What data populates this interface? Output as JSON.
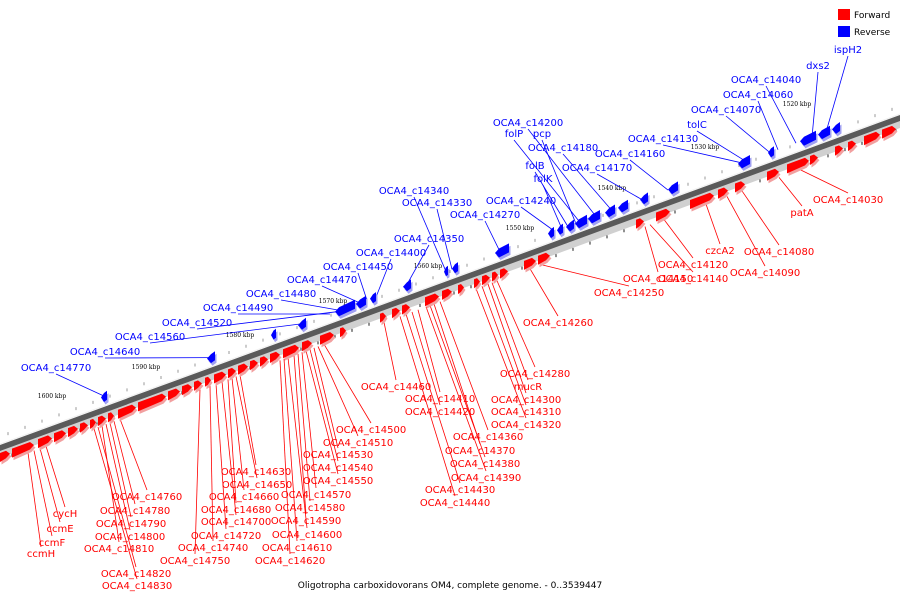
{
  "caption": "Oligotropha carboxidovorans OM4, complete genome. - 0..3539447",
  "legend": [
    {
      "label": "Forward",
      "color": "#ff0000"
    },
    {
      "label": "Reverse",
      "color": "#0000ff"
    }
  ],
  "ruler": [
    "1520 kbp",
    "1530 kbp",
    "1540 kbp",
    "1550 kbp",
    "1560 kbp",
    "1570 kbp",
    "1580 kbp",
    "1590 kbp",
    "1600 kbp"
  ],
  "reverse_labels": [
    "ispH2",
    "dxs2",
    "OCA4_c14040",
    "OCA4_c14060",
    "OCA4_c14070",
    "tolC",
    "OCA4_c14130",
    "OCA4_c14160",
    "OCA4_c14170",
    "OCA4_c14180",
    "OCA4_c14200",
    "folP",
    "pcp",
    "folB",
    "folK",
    "OCA4_c14240",
    "OCA4_c14270",
    "OCA4_c14330",
    "OCA4_c14340",
    "OCA4_c14350",
    "OCA4_c14400",
    "OCA4_c14450",
    "OCA4_c14470",
    "OCA4_c14480",
    "OCA4_c14490",
    "OCA4_c14520",
    "OCA4_c14560",
    "OCA4_c14640",
    "OCA4_c14770"
  ],
  "forward_labels": [
    "OCA4_c14030",
    "patA",
    "OCA4_c14080",
    "OCA4_c14090",
    "czcA2",
    "OCA4_c14120",
    "OCA4_c14140",
    "OCA4_c14150",
    "OCA4_c14250",
    "OCA4_c14260",
    "OCA4_c14280",
    "mucR",
    "OCA4_c14300",
    "OCA4_c14310",
    "OCA4_c14320",
    "OCA4_c14360",
    "OCA4_c14370",
    "OCA4_c14380",
    "OCA4_c14390",
    "OCA4_c14410",
    "OCA4_c14420",
    "OCA4_c14430",
    "OCA4_c14440",
    "OCA4_c14460",
    "OCA4_c14500",
    "OCA4_c14510",
    "OCA4_c14530",
    "OCA4_c14540",
    "OCA4_c14550",
    "OCA4_c14570",
    "OCA4_c14580",
    "OCA4_c14590",
    "OCA4_c14600",
    "OCA4_c14610",
    "OCA4_c14620",
    "OCA4_c14630",
    "OCA4_c14650",
    "OCA4_c14660",
    "OCA4_c14680",
    "OCA4_c14700",
    "OCA4_c14720",
    "OCA4_c14740",
    "OCA4_c14750",
    "OCA4_c14760",
    "OCA4_c14780",
    "OCA4_c14790",
    "OCA4_c14800",
    "OCA4_c14810",
    "OCA4_c14820",
    "OCA4_c14830",
    "cycH",
    "ccmE",
    "ccmF",
    "ccmH"
  ]
}
